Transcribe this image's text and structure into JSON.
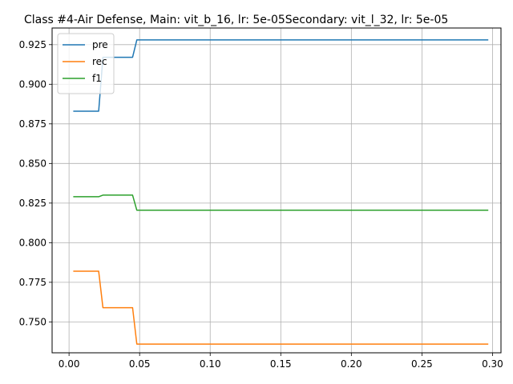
{
  "chart_data": {
    "type": "line",
    "title": "Class #4-Air Defense, Main: vit_b_16, lr: 5e-05Secondary: vit_l_32, lr: 5e-05",
    "xlabel": "",
    "ylabel": "",
    "xlim": [
      -0.012,
      0.306
    ],
    "ylim": [
      0.7305,
      0.9355
    ],
    "xticks": [
      0.0,
      0.05,
      0.1,
      0.15,
      0.2,
      0.25,
      0.3
    ],
    "xtick_labels": [
      "0.00",
      "0.05",
      "0.10",
      "0.15",
      "0.20",
      "0.25",
      "0.30"
    ],
    "yticks": [
      0.75,
      0.775,
      0.8,
      0.825,
      0.85,
      0.875,
      0.9,
      0.925
    ],
    "ytick_labels": [
      "0.750",
      "0.775",
      "0.800",
      "0.825",
      "0.850",
      "0.875",
      "0.900",
      "0.925"
    ],
    "grid": true,
    "legend_position": "top-left",
    "series": [
      {
        "name": "pre",
        "color": "#1f77b4",
        "x": [
          0.003,
          0.021,
          0.024,
          0.045,
          0.048,
          0.297
        ],
        "y": [
          0.883,
          0.883,
          0.917,
          0.917,
          0.928,
          0.928
        ]
      },
      {
        "name": "rec",
        "color": "#ff7f0e",
        "x": [
          0.003,
          0.021,
          0.024,
          0.045,
          0.048,
          0.297
        ],
        "y": [
          0.782,
          0.782,
          0.759,
          0.759,
          0.736,
          0.736
        ]
      },
      {
        "name": "f1",
        "color": "#2ca02c",
        "x": [
          0.003,
          0.021,
          0.024,
          0.045,
          0.048,
          0.297
        ],
        "y": [
          0.829,
          0.829,
          0.83,
          0.83,
          0.8205,
          0.8205
        ]
      }
    ]
  }
}
